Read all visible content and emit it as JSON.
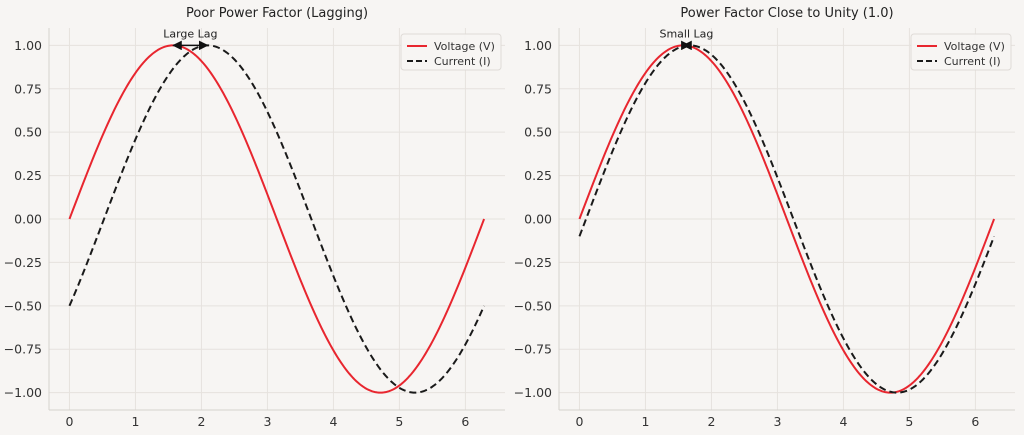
{
  "chart_data": [
    {
      "type": "line",
      "title": "Poor Power Factor (Lagging)",
      "xlabel": "",
      "ylabel": "",
      "xlim": [
        -0.31,
        6.6
      ],
      "ylim": [
        -1.1,
        1.1
      ],
      "x_ticks": [
        0,
        1,
        2,
        3,
        4,
        5,
        6
      ],
      "x_tick_labels": [
        "0",
        "1",
        "2",
        "3",
        "4",
        "5",
        "6"
      ],
      "y_ticks": [
        1.0,
        0.75,
        0.5,
        0.25,
        0.0,
        -0.25,
        -0.5,
        -0.75,
        -1.0
      ],
      "y_tick_labels": [
        "1.00",
        "0.75",
        "0.50",
        "0.25",
        "0.00",
        "−0.25",
        "−0.50",
        "−0.75",
        "−1.00"
      ],
      "grid": true,
      "legend": "top-right",
      "series": [
        {
          "name": "Voltage (V)",
          "function": "sin(x)",
          "x_range": [
            0,
            6.283
          ],
          "phase_lag": 0.0,
          "color": "#e8262f",
          "style": "solid"
        },
        {
          "name": "Current (I)",
          "function": "sin(x - 0.5236)",
          "x_range": [
            0,
            6.283
          ],
          "phase_lag": 0.5236,
          "color": "#1a1a1a",
          "style": "dashed"
        }
      ],
      "annotations": [
        {
          "text": "Large Lag",
          "from": [
            1.571,
            1.0
          ],
          "to": [
            2.094,
            1.0
          ]
        }
      ]
    },
    {
      "type": "line",
      "title": "Power Factor Close to Unity (1.0)",
      "xlabel": "",
      "ylabel": "",
      "xlim": [
        -0.31,
        6.6
      ],
      "ylim": [
        -1.1,
        1.1
      ],
      "x_ticks": [
        0,
        1,
        2,
        3,
        4,
        5,
        6
      ],
      "x_tick_labels": [
        "0",
        "1",
        "2",
        "3",
        "4",
        "5",
        "6"
      ],
      "y_ticks": [
        1.0,
        0.75,
        0.5,
        0.25,
        0.0,
        -0.25,
        -0.5,
        -0.75,
        -1.0
      ],
      "y_tick_labels": [
        "1.00",
        "0.75",
        "0.50",
        "0.25",
        "0.00",
        "−0.25",
        "−0.50",
        "−0.75",
        "−1.00"
      ],
      "grid": true,
      "legend": "top-right",
      "series": [
        {
          "name": "Voltage (V)",
          "function": "sin(x)",
          "x_range": [
            0,
            6.283
          ],
          "phase_lag": 0.0,
          "color": "#e8262f",
          "style": "solid"
        },
        {
          "name": "Current (I)",
          "function": "sin(x - 0.1)",
          "x_range": [
            0,
            6.283
          ],
          "phase_lag": 0.1,
          "color": "#1a1a1a",
          "style": "dashed"
        }
      ],
      "annotations": [
        {
          "text": "Small Lag",
          "from": [
            1.571,
            1.0
          ],
          "to": [
            1.671,
            1.0
          ]
        }
      ]
    }
  ]
}
